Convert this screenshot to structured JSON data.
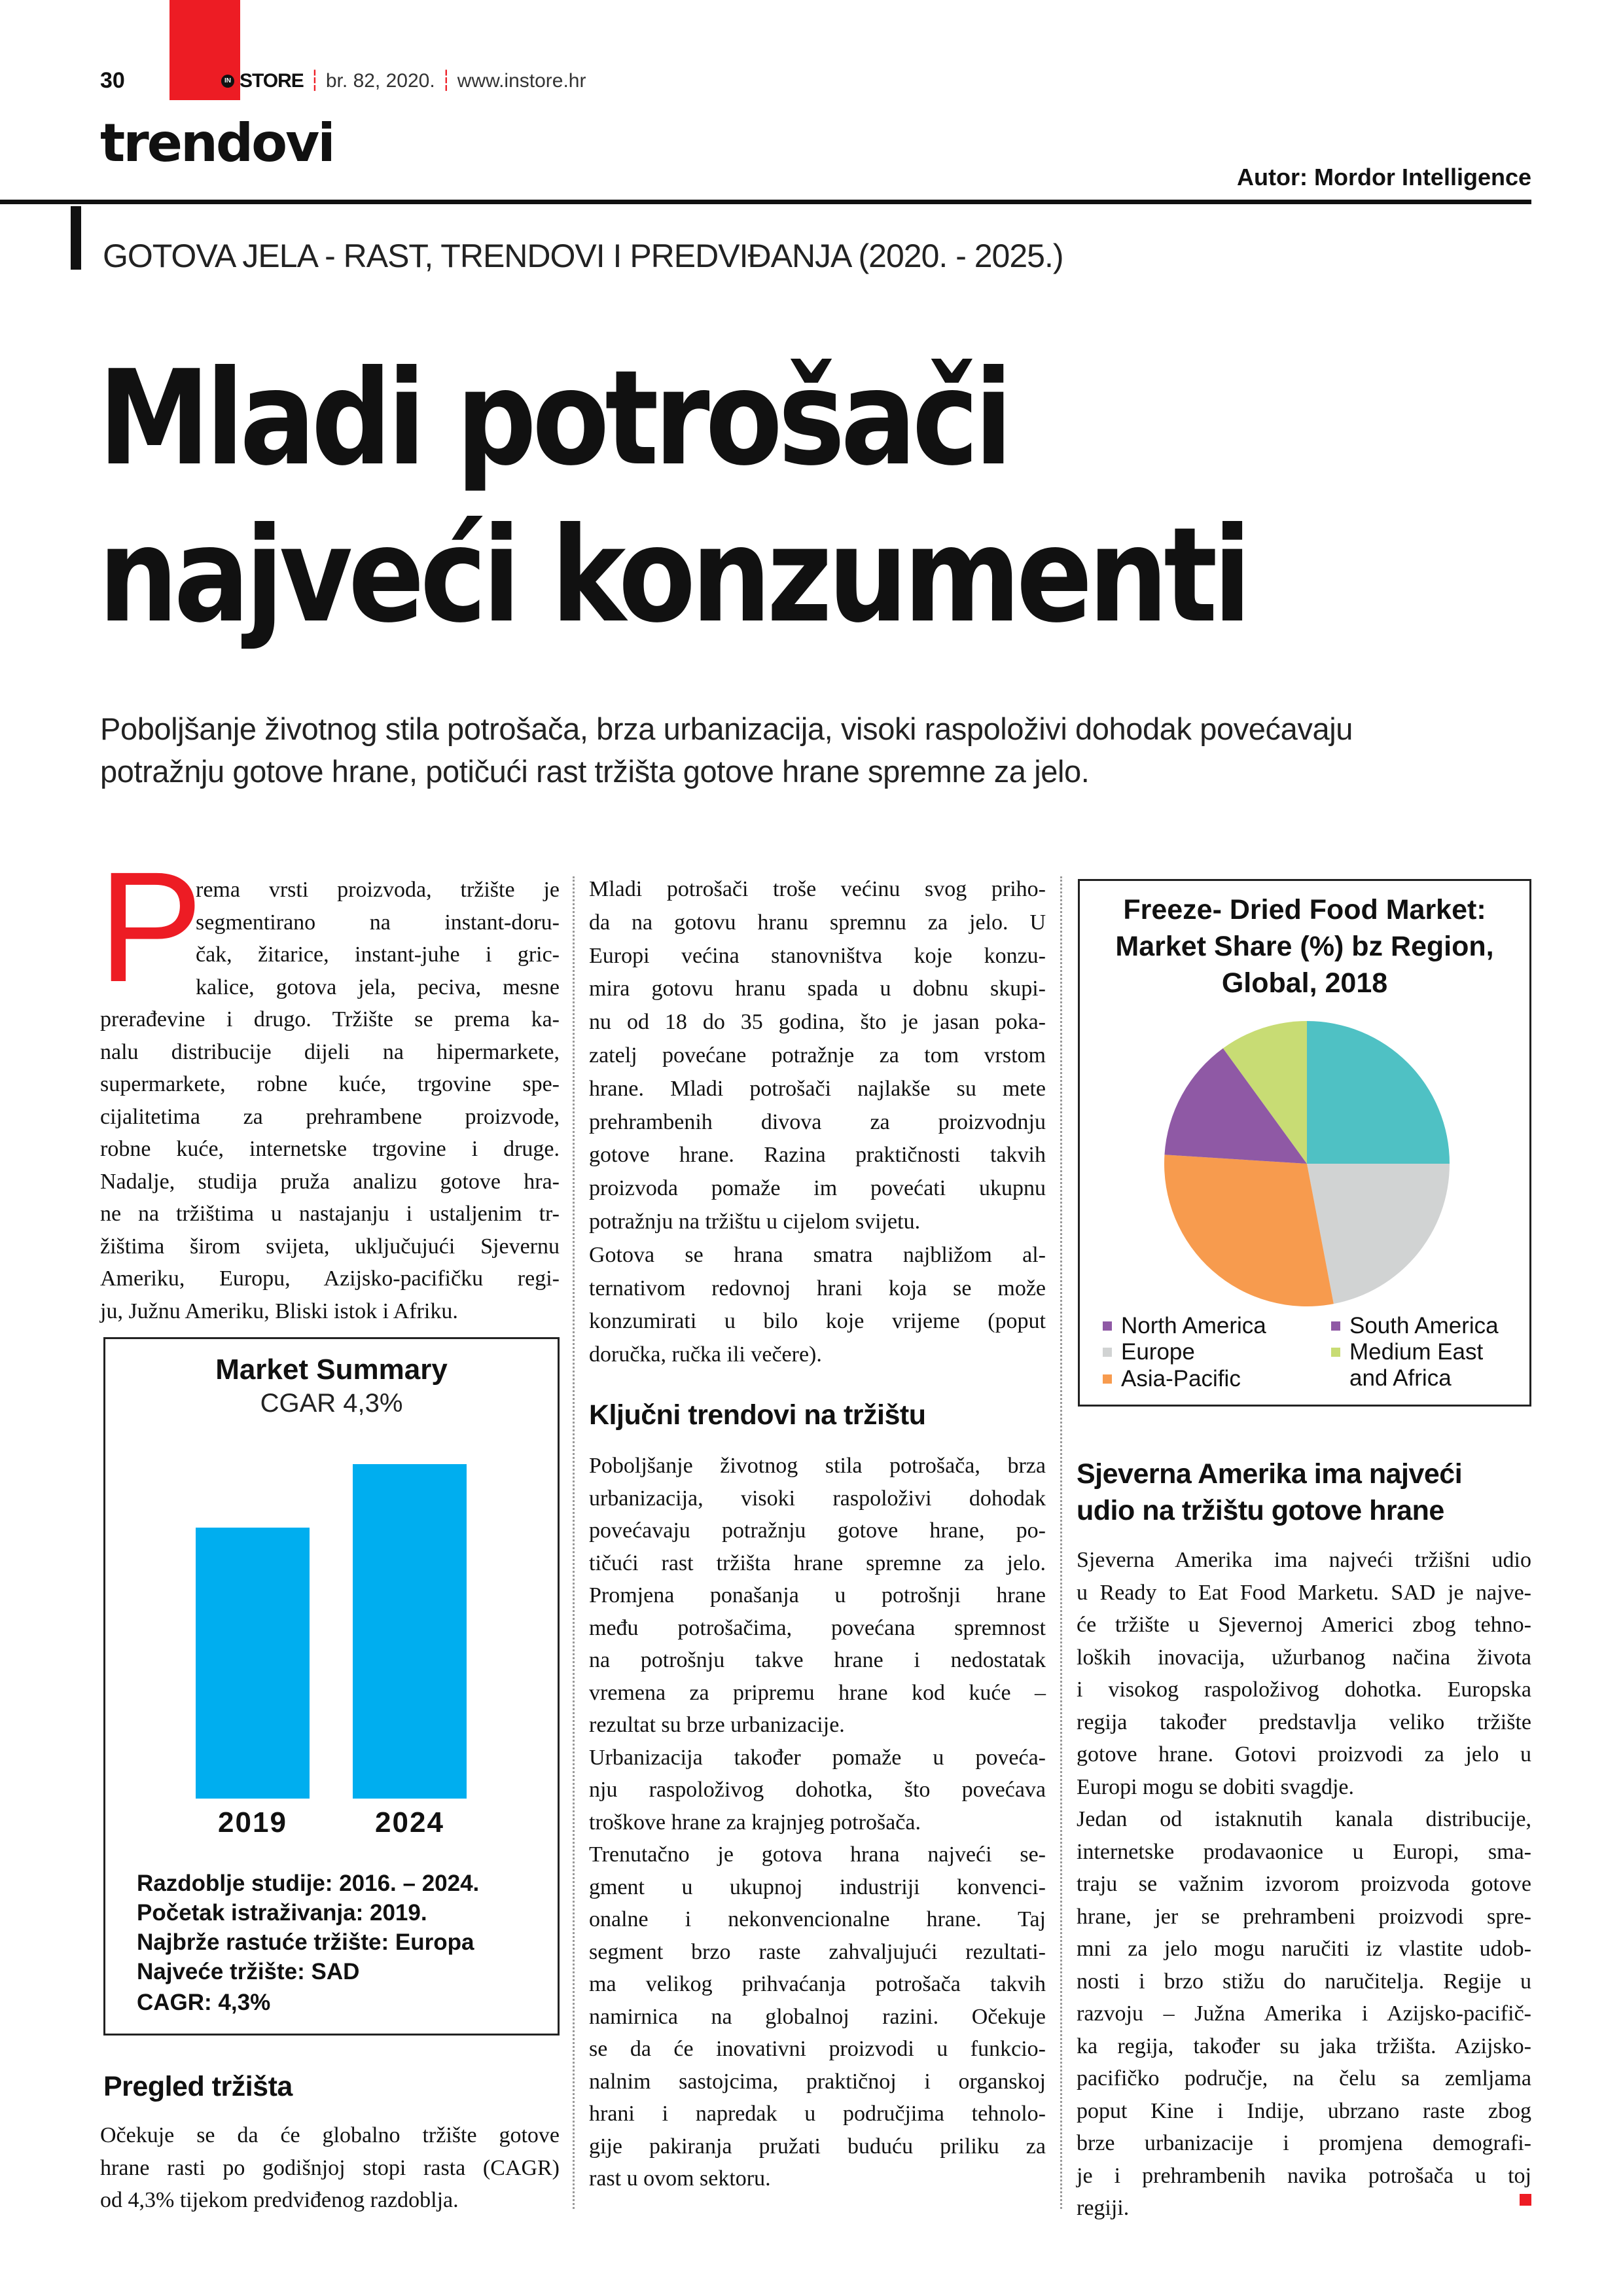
{
  "header": {
    "page_number": "30",
    "logo_in": "IN",
    "logo_store": "STORE",
    "issue": "br. 82, 2020.",
    "website": "www.instore.hr",
    "section": "trendovi",
    "author": "Autor: Mordor Intelligence",
    "brand_color": "#ed1c24"
  },
  "article": {
    "kicker": "GOTOVA JELA - RAST, TRENDOVI I PREDVIĐANJA (2020. - 2025.)",
    "headline": [
      "Mladi potrošači",
      "najveći konzumenti"
    ],
    "lead": [
      "Poboljšanje životnog stila potrošača, brza urbanizacija, visoki raspoloživi dohodak povećavaju",
      "potražnju gotove hrane, potičući rast tržišta gotove hrane spremne za jelo."
    ],
    "drop_cap": "P",
    "col1_lines": [
      "rema vrsti proizvoda, tržište je",
      "segmentirano na instant-doru-",
      "čak, žitarice, instant-juhe i gric-",
      "kalice, gotova jela, peciva, mesne",
      "prerađevine i drugo. Tržište se prema ka-",
      "nalu distribucije dijeli na hipermarkete,",
      "supermarkete, robne kuće, trgovine spe-",
      "cijalitetima za prehrambene proizvode,",
      "robne kuće, internetske trgovine i druge.",
      "Nadalje, studija pruža analizu gotove hra-",
      "ne na tržištima u nastajanju i ustaljenim tr-",
      "žištima širom svijeta, uključujući Sjevernu",
      "Ameriku, Europu, Azijsko-pacifičku regi-",
      "ju, Južnu Ameriku, Bliski istok i Afriku."
    ],
    "pregled_heading": "Pregled tržišta",
    "pregled_lines": [
      "Očekuje se da će globalno tržište gotove",
      "hrane rasti po godišnjoj stopi rasta (CAGR)",
      "od 4,3% tijekom predviđenog razdoblja."
    ],
    "col2a_lines": [
      "Mladi potrošači troše većinu svog priho-",
      "da na gotovu hranu spremnu za jelo. U",
      "Europi većina stanovništva koje konzu-",
      "mira gotovu hranu spada u dobnu skupi-",
      "nu od 18 do 35 godina, što je jasan poka-",
      "zatelj povećane potražnje za tom vrstom",
      "hrane. Mladi potrošači najlakše su mete",
      "prehrambenih divova za proizvodnju",
      "gotove hrane. Razina praktičnosti takvih",
      "proizvoda pomaže im povećati ukupnu",
      "potražnju na tržištu u cijelom svijetu.",
      "Gotova se hrana smatra najbližom al-",
      "ternativom redovnoj hrani koja se može",
      "konzumirati u bilo koje vrijeme (poput",
      "doručka, ručka ili večere)."
    ],
    "trendovi_heading": "Ključni trendovi na tržištu",
    "col2b_lines": [
      "Poboljšanje životnog stila potrošača, brza",
      "urbanizacija, visoki raspoloživi dohodak",
      "povećavaju potražnju gotove hrane, po-",
      "tičući rast tržišta hrane spremne za jelo.",
      "Promjena ponašanja u potrošnji hrane",
      "među potrošačima, povećana spremnost",
      "na potrošnju takve hrane i nedostatak",
      "vremena za pripremu hrane kod kuće –",
      "rezultat su brze urbanizacije.",
      "Urbanizacija također pomaže u poveća-",
      "nju raspoloživog dohotka, što povećava",
      "troškove hrane za krajnjeg potrošača.",
      "Trenutačno je gotova hrana najveći se-",
      "gment u ukupnoj industriji konvenci-",
      "onalne i nekonvencionalne hrane. Taj",
      "segment brzo raste zahvaljujući rezultati-",
      "ma velikog prihvaćanja potrošača takvih",
      "namirnica na globalnoj razini. Očekuje",
      "se da će inovativni proizvodi u funkcio-",
      "nalnim sastojcima, praktičnoj i organskoj",
      "hrani i napredak u područjima tehnolo-",
      "gije pakiranja pružati buduću priliku za",
      "rast u ovom sektoru."
    ],
    "col3_heading": [
      "Sjeverna Amerika ima najveći",
      "udio na tržištu gotove hrane"
    ],
    "col3_lines": [
      "Sjeverna Amerika ima najveći tržišni udio",
      "u Ready to Eat Food Marketu. SAD je najve-",
      "će tržište u Sjevernoj Americi zbog tehno-",
      "loških inovacija, užurbanog načina života",
      "i visokog raspoloživog dohotka. Europska",
      "regija također predstavlja veliko tržište",
      "gotove hrane. Gotovi proizvodi za jelo u",
      "Europi mogu se dobiti svagdje.",
      "Jedan od istaknutih kanala distribucije,",
      "internetske prodavaonice u Europi, sma-",
      "traju se važnim izvorom proizvoda gotove",
      "hrane, jer se prehrambeni proizvodi spre-",
      "mni za jelo mogu naručiti iz vlastite udob-",
      "nosti i brzo stižu do naručitelja. Regije u",
      "razvoju – Južna Amerika i Azijsko-pacifič-",
      "ka regija, također su jaka tržišta. Azijsko-",
      "pacifičko područje, na čelu sa zemljama",
      "poput Kine i Indije, ubrzano raste zbog",
      "brze urbanizacije i promjena demografi-",
      "je i prehrambenih navika potrošača u toj",
      "regiji."
    ]
  },
  "market_summary": {
    "title": "Market Summary",
    "subtitle": "CGAR 4,3%",
    "info": [
      "Razdoblje studije: 2016. – 2024.",
      "Početak istraživanja: 2019.",
      "Najbrže rastuće tržište: Europa",
      "Najveće tržište: SAD",
      "CAGR: 4,3%"
    ]
  },
  "chart_data": [
    {
      "type": "bar",
      "title": "Market Summary",
      "subtitle": "CGAR 4,3%",
      "categories": [
        "2019",
        "2024"
      ],
      "values": [
        81,
        100
      ],
      "value_note": "relative bar height, % of 2024",
      "color": "#00aeef",
      "grid": false
    },
    {
      "type": "pie",
      "title": [
        "Freeze- Dried Food Market:",
        "Market Share (%) bz Region,",
        "Global, 2018"
      ],
      "slices": [
        {
          "value": 25,
          "color": "#4fc1c4"
        },
        {
          "value": 22,
          "color": "#d1d3d3"
        },
        {
          "value": 29,
          "color": "#f79b4e"
        },
        {
          "value": 14,
          "color": "#8f59a5"
        },
        {
          "value": 10,
          "color": "#c8dc74"
        }
      ],
      "legend": [
        {
          "label": "North America",
          "color": "#8f59a5"
        },
        {
          "label": "Europe",
          "color": "#d1d3d3"
        },
        {
          "label": "Asia-Pacific",
          "color": "#f79b4e"
        },
        {
          "label": "South America",
          "color": "#8f59a5"
        },
        {
          "label": "Medium East and Africa",
          "color": "#c8dc74"
        }
      ],
      "legend_position": "bottom"
    }
  ]
}
